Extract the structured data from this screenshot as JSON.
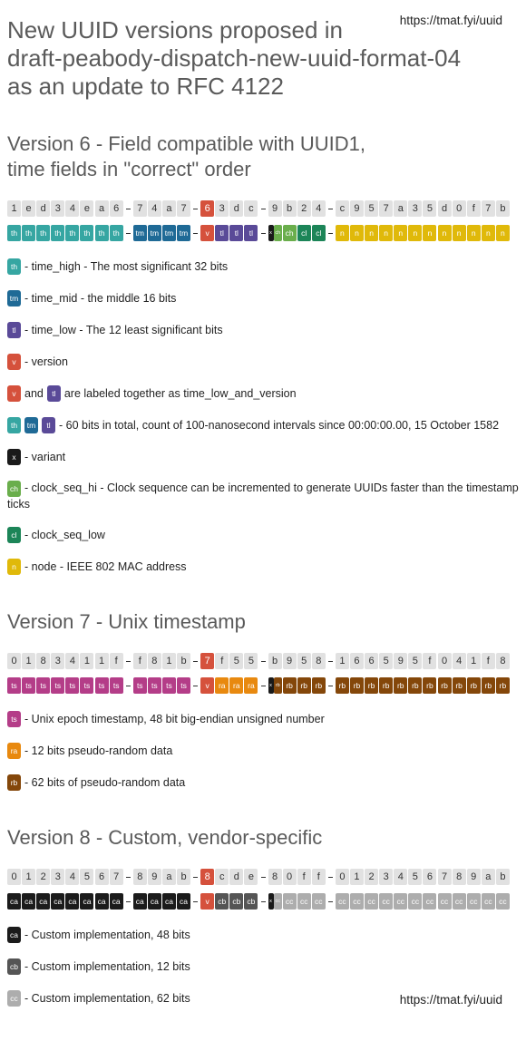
{
  "header": {
    "url": "https://tmat.fyi/uuid",
    "title": [
      "New UUID versions proposed in",
      "draft-peabody-dispatch-new-uuid-format-04",
      "as an update to RFC 4122"
    ]
  },
  "colors": {
    "th": "#36a6a2",
    "tm": "#1f6a96",
    "tl": "#5a4a98",
    "v": "#d5513c",
    "x": "#1a1a1a",
    "ch": "#6aae4c",
    "cl": "#1c8558",
    "n": "#e0b90a",
    "ts": "#b43d88",
    "ra": "#e8890f",
    "rb": "#84470a",
    "ca": "#1b1b1b",
    "cb": "#555555",
    "cc": "#adadad"
  },
  "sections": [
    {
      "title": [
        "Version 6 - Field compatible with UUID1,",
        "time fields in \"correct\" order"
      ],
      "groups": [
        {
          "hex": [
            "1",
            "e",
            "d",
            "3",
            "4",
            "e",
            "a",
            "6"
          ],
          "tags": [
            "th",
            "th",
            "th",
            "th",
            "th",
            "th",
            "th",
            "th"
          ]
        },
        {
          "hex": [
            "7",
            "4",
            "a",
            "7"
          ],
          "tags": [
            "tm",
            "tm",
            "tm",
            "tm"
          ]
        },
        {
          "hex": [
            "6",
            "3",
            "d",
            "c"
          ],
          "tags": [
            "v",
            "tl",
            "tl",
            "tl"
          ]
        },
        {
          "hex": [
            "9",
            "b",
            "2",
            "4"
          ],
          "tags": [
            [
              "x",
              "ch"
            ],
            "ch",
            "cl",
            "cl"
          ]
        },
        {
          "hex": [
            "c",
            "9",
            "5",
            "7",
            "a",
            "3",
            "5",
            "d",
            "0",
            "f",
            "7",
            "b"
          ],
          "tags": [
            "n",
            "n",
            "n",
            "n",
            "n",
            "n",
            "n",
            "n",
            "n",
            "n",
            "n",
            "n"
          ]
        }
      ],
      "legend": [
        {
          "parts": [
            {
              "tag": "th"
            },
            {
              "text": "- time_high - The most significant 32 bits"
            }
          ]
        },
        {
          "parts": [
            {
              "tag": "tm"
            },
            {
              "text": "- time_mid - the middle 16 bits"
            }
          ]
        },
        {
          "parts": [
            {
              "tag": "tl"
            },
            {
              "text": "- time_low - The 12 least significant bits"
            }
          ]
        },
        {
          "parts": [
            {
              "tag": "v"
            },
            {
              "text": "- version"
            }
          ]
        },
        {
          "parts": [
            {
              "tag": "v"
            },
            {
              "text": "and"
            },
            {
              "tag": "tl"
            },
            {
              "text": "are labeled together as time_low_and_version"
            }
          ]
        },
        {
          "parts": [
            {
              "tag": "th"
            },
            {
              "tag": "tm"
            },
            {
              "tag": "tl"
            },
            {
              "text": "- 60 bits in total, count of 100-nanosecond intervals since 00:00:00.00, 15 October 1582"
            }
          ]
        },
        {
          "parts": [
            {
              "tag": "x"
            },
            {
              "text": "- variant"
            }
          ]
        },
        {
          "parts": [
            {
              "tag": "ch"
            },
            {
              "text": "- clock_seq_hi - Clock sequence can be incremented to generate UUIDs faster than the timestamp ticks"
            }
          ]
        },
        {
          "parts": [
            {
              "tag": "cl"
            },
            {
              "text": "- clock_seq_low"
            }
          ]
        },
        {
          "parts": [
            {
              "tag": "n"
            },
            {
              "text": "- node - IEEE 802 MAC address"
            }
          ]
        }
      ]
    },
    {
      "title": [
        "Version 7 - Unix timestamp"
      ],
      "groups": [
        {
          "hex": [
            "0",
            "1",
            "8",
            "3",
            "4",
            "1",
            "1",
            "f"
          ],
          "tags": [
            "ts",
            "ts",
            "ts",
            "ts",
            "ts",
            "ts",
            "ts",
            "ts"
          ]
        },
        {
          "hex": [
            "f",
            "8",
            "1",
            "b"
          ],
          "tags": [
            "ts",
            "ts",
            "ts",
            "ts"
          ]
        },
        {
          "hex": [
            "7",
            "f",
            "5",
            "5"
          ],
          "tags": [
            "v",
            "ra",
            "ra",
            "ra"
          ]
        },
        {
          "hex": [
            "b",
            "9",
            "5",
            "8"
          ],
          "tags": [
            [
              "x",
              "rb"
            ],
            "rb",
            "rb",
            "rb"
          ]
        },
        {
          "hex": [
            "1",
            "6",
            "6",
            "5",
            "9",
            "5",
            "f",
            "0",
            "4",
            "1",
            "f",
            "8"
          ],
          "tags": [
            "rb",
            "rb",
            "rb",
            "rb",
            "rb",
            "rb",
            "rb",
            "rb",
            "rb",
            "rb",
            "rb",
            "rb"
          ]
        }
      ],
      "legend": [
        {
          "parts": [
            {
              "tag": "ts"
            },
            {
              "text": "- Unix epoch timestamp, 48 bit big-endian unsigned number"
            }
          ]
        },
        {
          "parts": [
            {
              "tag": "ra"
            },
            {
              "text": "- 12 bits pseudo-random data"
            }
          ]
        },
        {
          "parts": [
            {
              "tag": "rb"
            },
            {
              "text": "- 62 bits of pseudo-random data"
            }
          ]
        }
      ]
    },
    {
      "title": [
        "Version 8 - Custom, vendor-specific"
      ],
      "groups": [
        {
          "hex": [
            "0",
            "1",
            "2",
            "3",
            "4",
            "5",
            "6",
            "7"
          ],
          "tags": [
            "ca",
            "ca",
            "ca",
            "ca",
            "ca",
            "ca",
            "ca",
            "ca"
          ]
        },
        {
          "hex": [
            "8",
            "9",
            "a",
            "b"
          ],
          "tags": [
            "ca",
            "ca",
            "ca",
            "ca"
          ]
        },
        {
          "hex": [
            "8",
            "c",
            "d",
            "e"
          ],
          "tags": [
            "v",
            "cb",
            "cb",
            "cb"
          ]
        },
        {
          "hex": [
            "8",
            "0",
            "f",
            "f"
          ],
          "tags": [
            [
              "x",
              "cc"
            ],
            "cc",
            "cc",
            "cc"
          ]
        },
        {
          "hex": [
            "0",
            "1",
            "2",
            "3",
            "4",
            "5",
            "6",
            "7",
            "8",
            "9",
            "a",
            "b"
          ],
          "tags": [
            "cc",
            "cc",
            "cc",
            "cc",
            "cc",
            "cc",
            "cc",
            "cc",
            "cc",
            "cc",
            "cc",
            "cc"
          ]
        }
      ],
      "legend": [
        {
          "parts": [
            {
              "tag": "ca"
            },
            {
              "text": "- Custom implementation, 48 bits"
            }
          ]
        },
        {
          "parts": [
            {
              "tag": "cb"
            },
            {
              "text": "- Custom implementation, 12 bits"
            }
          ]
        },
        {
          "parts": [
            {
              "tag": "cc"
            },
            {
              "text": "- Custom implementation, 62 bits"
            }
          ]
        }
      ]
    }
  ],
  "footer": {
    "url": "https://tmat.fyi/uuid"
  }
}
